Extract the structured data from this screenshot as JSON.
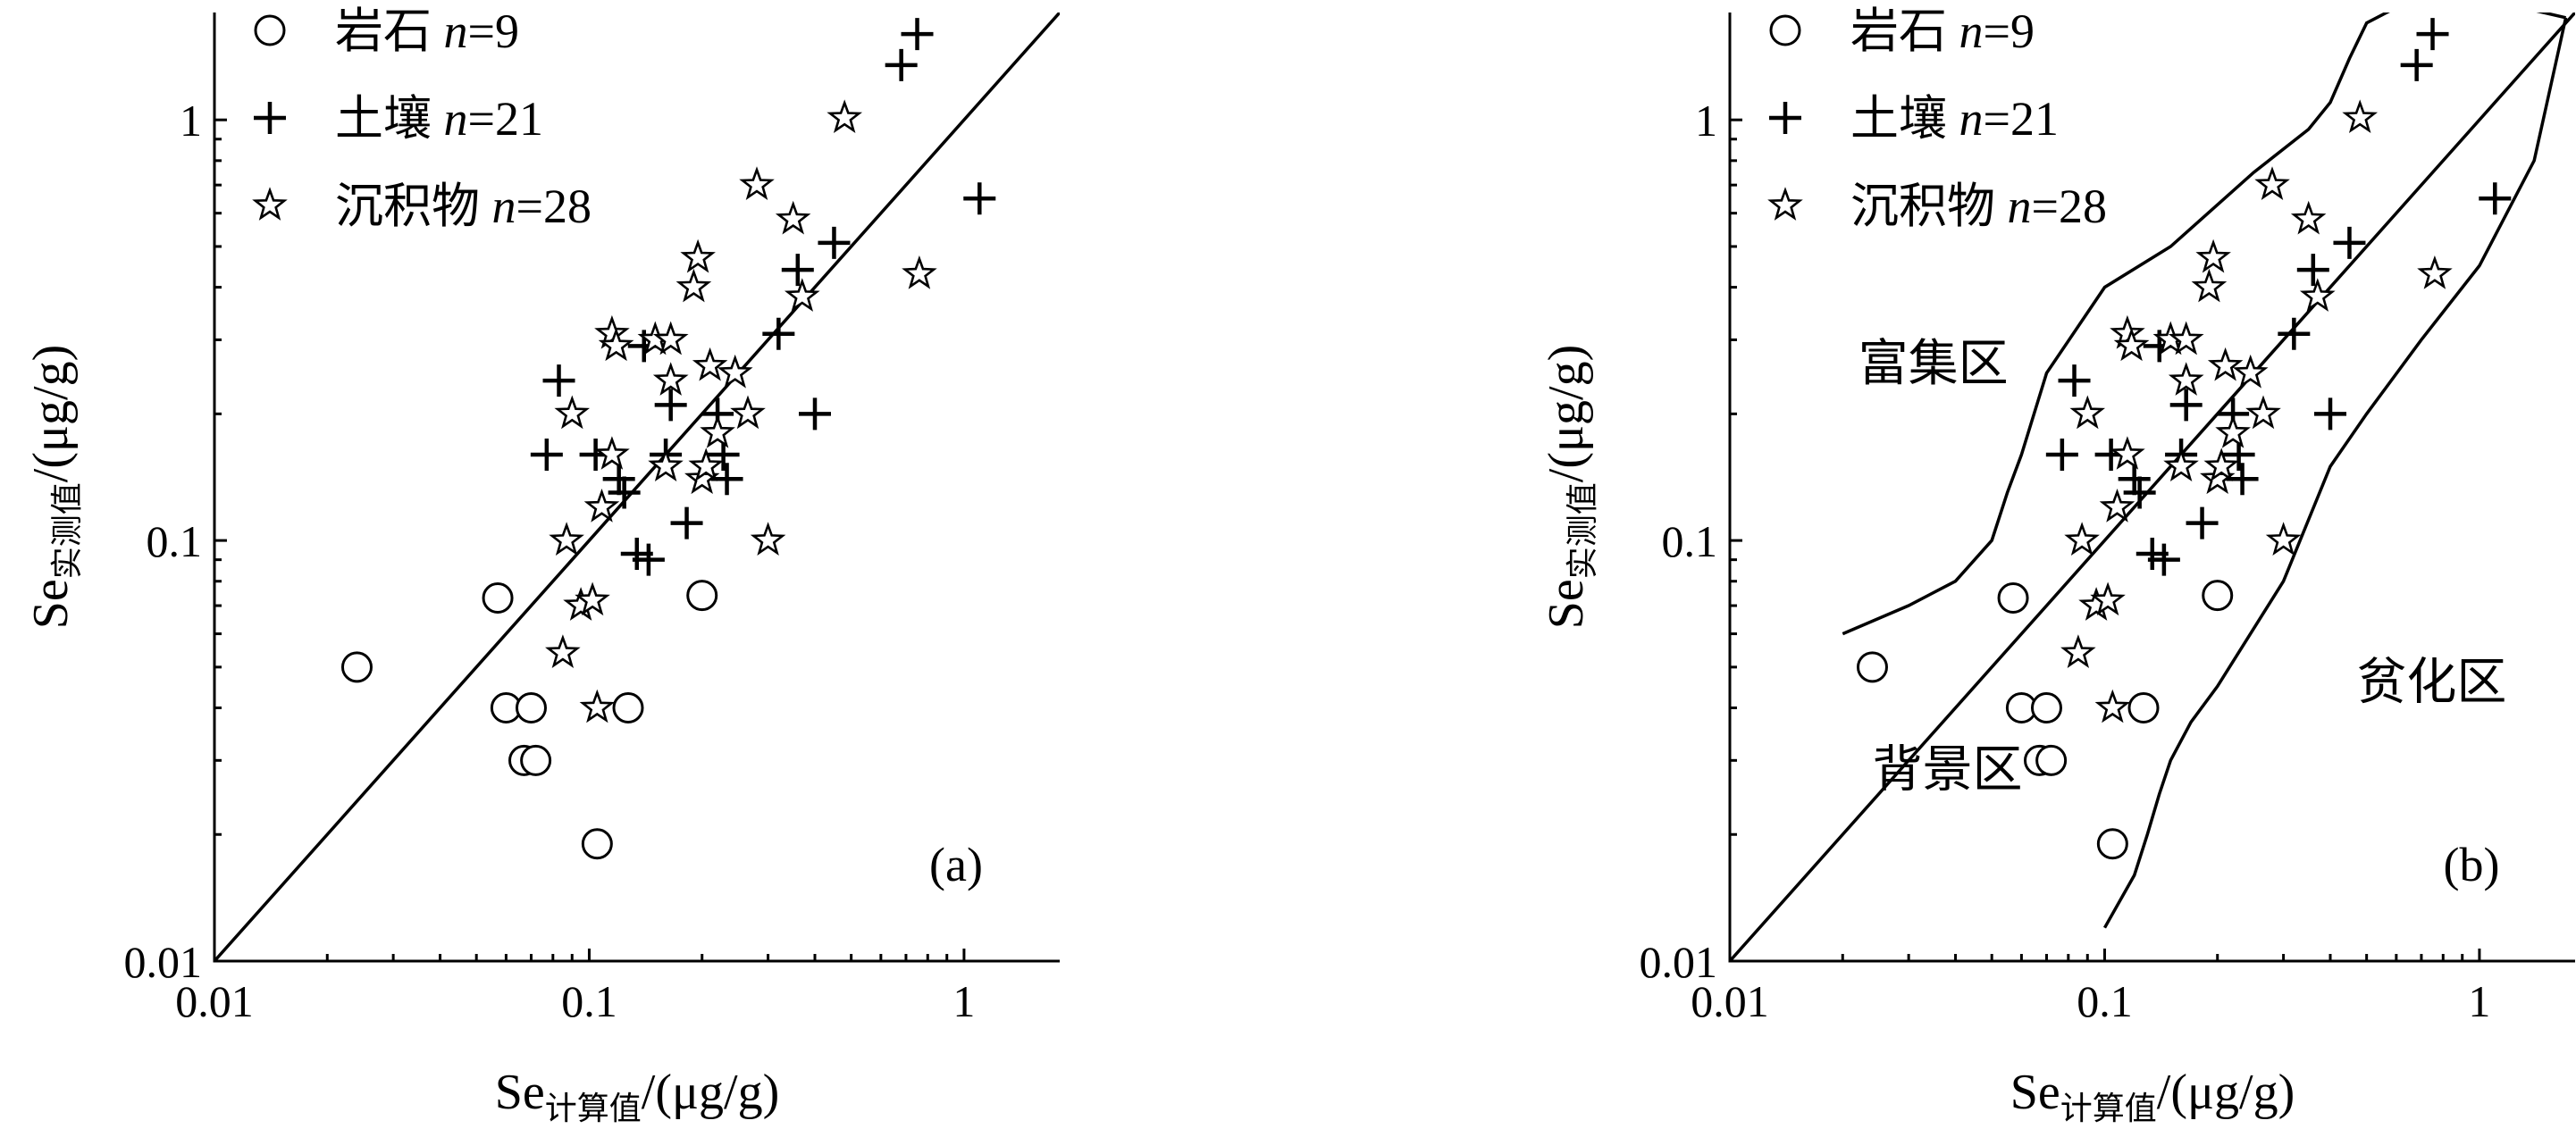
{
  "chart_data": [
    {
      "type": "scatter",
      "scale": "log-log",
      "xlim": [
        0.01,
        1.8
      ],
      "ylim": [
        0.01,
        1.8
      ],
      "xticks": [
        {
          "value": 0.01,
          "label": "0.01"
        },
        {
          "value": 0.1,
          "label": "0.1"
        },
        {
          "value": 1,
          "label": "1"
        }
      ],
      "yticks": [
        {
          "value": 0.01,
          "label": "0.01"
        },
        {
          "value": 0.1,
          "label": "0.1"
        },
        {
          "value": 1,
          "label": "1"
        }
      ],
      "xlabel": {
        "main": "Se",
        "sub": "计算值",
        "unit": "/(μg/g)"
      },
      "ylabel": {
        "main": "Se",
        "sub": "实测值",
        "unit": "/(μg/g)"
      },
      "panel_label": "(a)",
      "legend_position": "top-left",
      "reference_line": {
        "x": [
          0.01,
          1.8
        ],
        "y": [
          0.01,
          1.8
        ]
      },
      "series": [
        {
          "name": "岩石",
          "n_label": "n",
          "n_value": "=9",
          "marker": "circle",
          "points": [
            [
              0.024,
              0.05
            ],
            [
              0.057,
              0.073
            ],
            [
              0.06,
              0.04
            ],
            [
              0.067,
              0.03
            ],
            [
              0.07,
              0.04
            ],
            [
              0.072,
              0.03
            ],
            [
              0.105,
              0.019
            ],
            [
              0.127,
              0.04
            ],
            [
              0.2,
              0.074
            ]
          ]
        },
        {
          "name": "土壤",
          "n_label": "n",
          "n_value": "=21",
          "marker": "plus",
          "points": [
            [
              0.077,
              0.16
            ],
            [
              0.083,
              0.24
            ],
            [
              0.104,
              0.16
            ],
            [
              0.12,
              0.14
            ],
            [
              0.124,
              0.13
            ],
            [
              0.134,
              0.093
            ],
            [
              0.14,
              0.29
            ],
            [
              0.144,
              0.09
            ],
            [
              0.16,
              0.16
            ],
            [
              0.165,
              0.21
            ],
            [
              0.182,
              0.11
            ],
            [
              0.22,
              0.2
            ],
            [
              0.228,
              0.16
            ],
            [
              0.233,
              0.14
            ],
            [
              0.32,
              0.31
            ],
            [
              0.36,
              0.44
            ],
            [
              0.4,
              0.2
            ],
            [
              0.45,
              0.51
            ],
            [
              0.68,
              1.35
            ],
            [
              0.75,
              1.6
            ],
            [
              1.1,
              0.65
            ]
          ]
        },
        {
          "name": "沉积物",
          "n_label": "n",
          "n_value": "=28",
          "marker": "star",
          "points": [
            [
              0.085,
              0.054
            ],
            [
              0.087,
              0.1
            ],
            [
              0.09,
              0.2
            ],
            [
              0.095,
              0.07
            ],
            [
              0.102,
              0.072
            ],
            [
              0.105,
              0.04
            ],
            [
              0.108,
              0.12
            ],
            [
              0.115,
              0.16
            ],
            [
              0.115,
              0.31
            ],
            [
              0.118,
              0.29
            ],
            [
              0.15,
              0.3
            ],
            [
              0.16,
              0.15
            ],
            [
              0.165,
              0.3
            ],
            [
              0.165,
              0.24
            ],
            [
              0.19,
              0.4
            ],
            [
              0.195,
              0.47
            ],
            [
              0.2,
              0.14
            ],
            [
              0.205,
              0.15
            ],
            [
              0.21,
              0.26
            ],
            [
              0.22,
              0.18
            ],
            [
              0.245,
              0.25
            ],
            [
              0.265,
              0.2
            ],
            [
              0.28,
              0.7
            ],
            [
              0.3,
              0.1
            ],
            [
              0.35,
              0.58
            ],
            [
              0.37,
              0.38
            ],
            [
              0.48,
              1.01
            ],
            [
              0.76,
              0.43
            ]
          ]
        }
      ]
    },
    {
      "type": "scatter",
      "scale": "log-log",
      "xlim": [
        0.01,
        1.8
      ],
      "ylim": [
        0.01,
        1.8
      ],
      "xticks": [
        {
          "value": 0.01,
          "label": "0.01"
        },
        {
          "value": 0.1,
          "label": "0.1"
        },
        {
          "value": 1,
          "label": "1"
        }
      ],
      "yticks": [
        {
          "value": 0.01,
          "label": "0.01"
        },
        {
          "value": 0.1,
          "label": "0.1"
        },
        {
          "value": 1,
          "label": "1"
        }
      ],
      "xlabel": {
        "main": "Se",
        "sub": "计算值",
        "unit": "/(μg/g)"
      },
      "ylabel": {
        "main": "Se",
        "sub": "实测值",
        "unit": "/(μg/g)"
      },
      "panel_label": "(b)",
      "legend_position": "top-left",
      "reference_line": {
        "x": [
          0.01,
          1.8
        ],
        "y": [
          0.01,
          1.8
        ]
      },
      "regions": [
        {
          "label": "富集区",
          "x": 0.022,
          "y": 0.24
        },
        {
          "label": "背景区",
          "x": 0.024,
          "y": 0.026
        },
        {
          "label": "贫化区",
          "x": 0.47,
          "y": 0.042
        }
      ],
      "boundaries": [
        {
          "name": "upper",
          "points": [
            [
              0.02,
              0.06
            ],
            [
              0.03,
              0.07
            ],
            [
              0.04,
              0.08
            ],
            [
              0.05,
              0.1
            ],
            [
              0.055,
              0.13
            ],
            [
              0.06,
              0.16
            ],
            [
              0.07,
              0.25
            ],
            [
              0.1,
              0.4
            ],
            [
              0.15,
              0.5
            ],
            [
              0.25,
              0.75
            ],
            [
              0.35,
              0.95
            ],
            [
              0.4,
              1.1
            ],
            [
              0.45,
              1.4
            ],
            [
              0.5,
              1.7
            ],
            [
              0.6,
              1.85
            ],
            [
              1.0,
              1.95
            ],
            [
              1.7,
              1.75
            ]
          ]
        },
        {
          "name": "lower",
          "points": [
            [
              0.1,
              0.012
            ],
            [
              0.12,
              0.016
            ],
            [
              0.13,
              0.02
            ],
            [
              0.14,
              0.025
            ],
            [
              0.15,
              0.03
            ],
            [
              0.17,
              0.037
            ],
            [
              0.2,
              0.045
            ],
            [
              0.3,
              0.08
            ],
            [
              0.4,
              0.15
            ],
            [
              0.5,
              0.2
            ],
            [
              0.7,
              0.3
            ],
            [
              1.0,
              0.45
            ],
            [
              1.4,
              0.8
            ],
            [
              1.7,
              1.75
            ]
          ]
        }
      ],
      "series": [
        {
          "name": "岩石",
          "n_label": "n",
          "n_value": "=9",
          "marker": "circle",
          "points": [
            [
              0.024,
              0.05
            ],
            [
              0.057,
              0.073
            ],
            [
              0.06,
              0.04
            ],
            [
              0.067,
              0.03
            ],
            [
              0.07,
              0.04
            ],
            [
              0.072,
              0.03
            ],
            [
              0.105,
              0.019
            ],
            [
              0.127,
              0.04
            ],
            [
              0.2,
              0.074
            ]
          ]
        },
        {
          "name": "土壤",
          "n_label": "n",
          "n_value": "=21",
          "marker": "plus",
          "points": [
            [
              0.077,
              0.16
            ],
            [
              0.083,
              0.24
            ],
            [
              0.104,
              0.16
            ],
            [
              0.12,
              0.14
            ],
            [
              0.124,
              0.13
            ],
            [
              0.134,
              0.093
            ],
            [
              0.14,
              0.29
            ],
            [
              0.144,
              0.09
            ],
            [
              0.16,
              0.16
            ],
            [
              0.165,
              0.21
            ],
            [
              0.182,
              0.11
            ],
            [
              0.22,
              0.2
            ],
            [
              0.228,
              0.16
            ],
            [
              0.233,
              0.14
            ],
            [
              0.32,
              0.31
            ],
            [
              0.36,
              0.44
            ],
            [
              0.4,
              0.2
            ],
            [
              0.45,
              0.51
            ],
            [
              0.68,
              1.35
            ],
            [
              0.75,
              1.6
            ],
            [
              1.1,
              0.65
            ]
          ]
        },
        {
          "name": "沉积物",
          "n_label": "n",
          "n_value": "=28",
          "marker": "star",
          "points": [
            [
              0.085,
              0.054
            ],
            [
              0.087,
              0.1
            ],
            [
              0.09,
              0.2
            ],
            [
              0.095,
              0.07
            ],
            [
              0.102,
              0.072
            ],
            [
              0.105,
              0.04
            ],
            [
              0.108,
              0.12
            ],
            [
              0.115,
              0.16
            ],
            [
              0.115,
              0.31
            ],
            [
              0.118,
              0.29
            ],
            [
              0.15,
              0.3
            ],
            [
              0.16,
              0.15
            ],
            [
              0.165,
              0.3
            ],
            [
              0.165,
              0.24
            ],
            [
              0.19,
              0.4
            ],
            [
              0.195,
              0.47
            ],
            [
              0.2,
              0.14
            ],
            [
              0.205,
              0.15
            ],
            [
              0.21,
              0.26
            ],
            [
              0.22,
              0.18
            ],
            [
              0.245,
              0.25
            ],
            [
              0.265,
              0.2
            ],
            [
              0.28,
              0.7
            ],
            [
              0.3,
              0.1
            ],
            [
              0.35,
              0.58
            ],
            [
              0.37,
              0.38
            ],
            [
              0.48,
              1.01
            ],
            [
              0.76,
              0.43
            ]
          ]
        }
      ]
    }
  ]
}
